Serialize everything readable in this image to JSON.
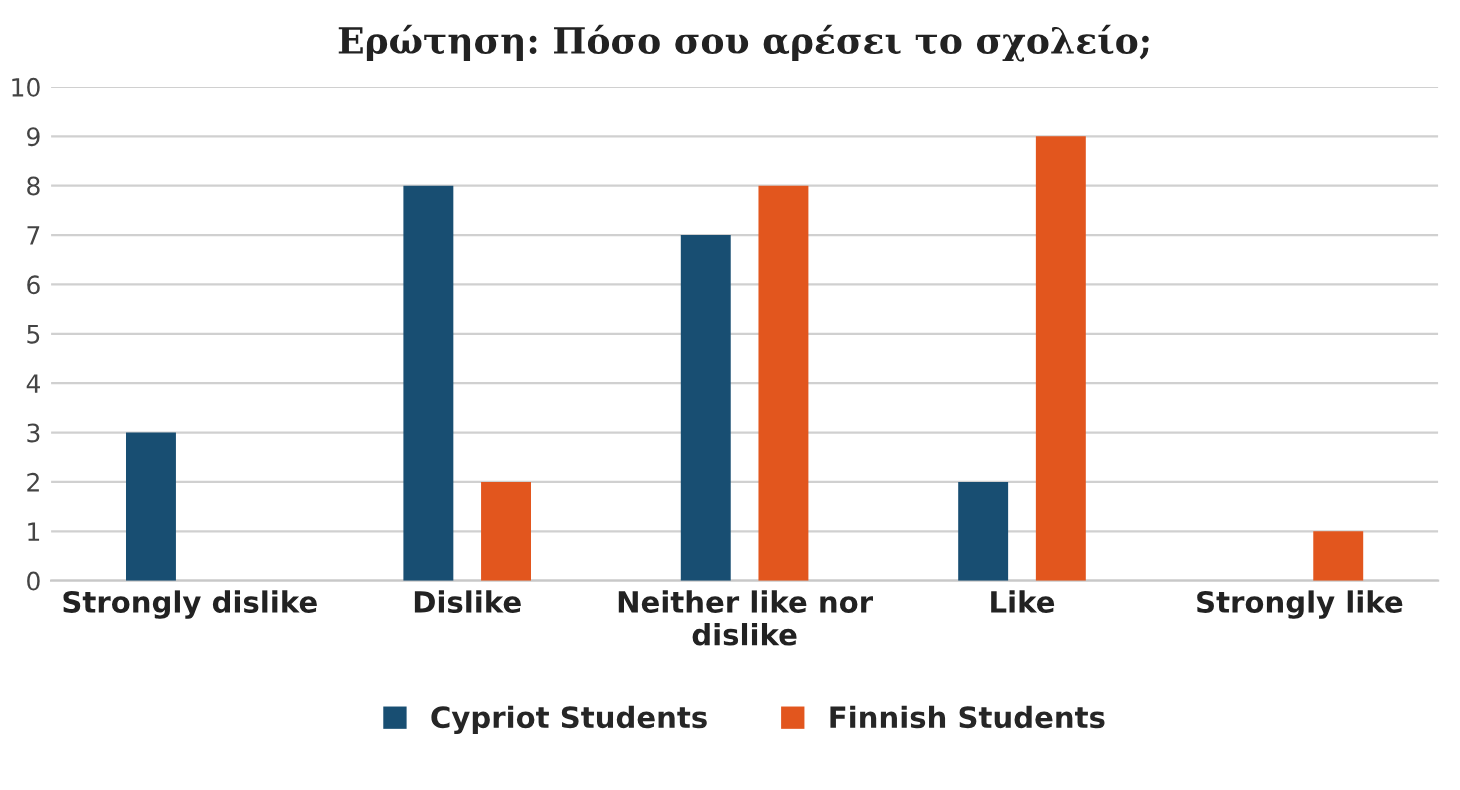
{
  "chart_data": {
    "type": "bar",
    "title": "Ερώτηση: Πόσο σου αρέσει το σχολείο;",
    "categories": [
      "Strongly dislike",
      "Dislike",
      "Neither like nor\ndislike",
      "Like",
      "Strongly like"
    ],
    "series": [
      {
        "name": "Cypriot Students",
        "color": "#184e72",
        "values": [
          3,
          8,
          7,
          2,
          null
        ]
      },
      {
        "name": "Finnish Students",
        "color": "#e2561e",
        "values": [
          null,
          2,
          8,
          9,
          1
        ]
      }
    ],
    "ylim": [
      0,
      10
    ],
    "yticks": [
      0,
      1,
      2,
      3,
      4,
      5,
      6,
      7,
      8,
      9,
      10
    ],
    "grid": "y",
    "legend": "bottom"
  }
}
